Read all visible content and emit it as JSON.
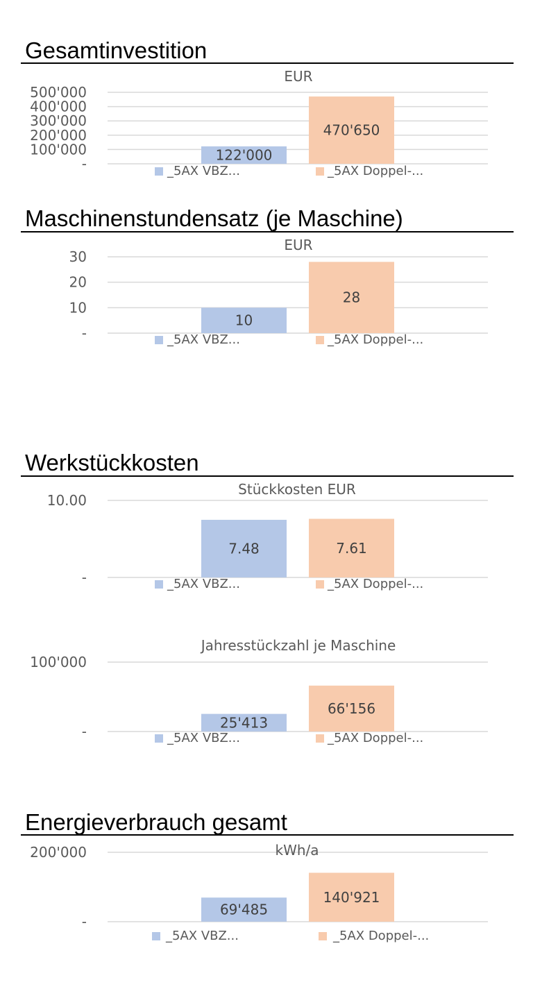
{
  "sections": [
    {
      "title": "Gesamtinvestition"
    },
    {
      "title": "Maschinenstundensatz   (je Maschine)"
    },
    {
      "title": "Werkstückkosten"
    },
    {
      "title": "Energieverbrauch gesamt"
    }
  ],
  "colors": {
    "series_1": "#B4C7E7",
    "series_2": "#F8CBAD",
    "gridline": "#D9D9D9",
    "text": "#595959"
  },
  "chart_data": [
    {
      "type": "bar",
      "title": "EUR",
      "categories": [
        "_5AX VBZ...",
        "_5AX Doppel-..."
      ],
      "values": [
        122000,
        470650
      ],
      "data_labels": [
        "122'000",
        "470'650"
      ],
      "ylim": [
        0,
        500000
      ],
      "ytick_values": [
        0,
        100000,
        200000,
        300000,
        400000,
        500000
      ],
      "ytick_labels": [
        "-",
        "100'000",
        "200'000",
        "300'000",
        "400'000",
        "500'000"
      ],
      "grid": true,
      "legend": "bottom"
    },
    {
      "type": "bar",
      "title": "EUR",
      "categories": [
        "_5AX VBZ...",
        "_5AX Doppel-..."
      ],
      "values": [
        10,
        28
      ],
      "data_labels": [
        "10",
        "28"
      ],
      "ylim": [
        0,
        30
      ],
      "ytick_values": [
        0,
        10,
        20,
        30
      ],
      "ytick_labels": [
        "-",
        "10",
        "20",
        "30"
      ],
      "grid": true,
      "legend": "bottom"
    },
    {
      "type": "bar",
      "title": "Stückkosten EUR",
      "categories": [
        "_5AX VBZ...",
        "_5AX Doppel-..."
      ],
      "values": [
        7.48,
        7.61
      ],
      "data_labels": [
        "7.48",
        "7.61"
      ],
      "ylim": [
        0,
        10
      ],
      "ytick_values": [
        0,
        10
      ],
      "ytick_labels": [
        "-",
        "10.00"
      ],
      "grid": true,
      "legend": "bottom"
    },
    {
      "type": "bar",
      "title": "Jahresstückzahl je Maschine",
      "categories": [
        "_5AX VBZ...",
        "_5AX Doppel-..."
      ],
      "values": [
        25413,
        66156
      ],
      "data_labels": [
        "25'413",
        "66'156"
      ],
      "ylim": [
        0,
        100000
      ],
      "ytick_values": [
        0,
        100000
      ],
      "ytick_labels": [
        "-",
        "100'000"
      ],
      "grid": true,
      "legend": "bottom"
    },
    {
      "type": "bar",
      "title": "kWh/a",
      "categories": [
        "_5AX VBZ...",
        "_5AX Doppel-..."
      ],
      "values": [
        69485,
        140921
      ],
      "data_labels": [
        "69'485",
        "140'921"
      ],
      "ylim": [
        0,
        200000
      ],
      "ytick_values": [
        0,
        200000
      ],
      "ytick_labels": [
        "-",
        "200'000"
      ],
      "grid": true,
      "legend": "bottom"
    }
  ]
}
